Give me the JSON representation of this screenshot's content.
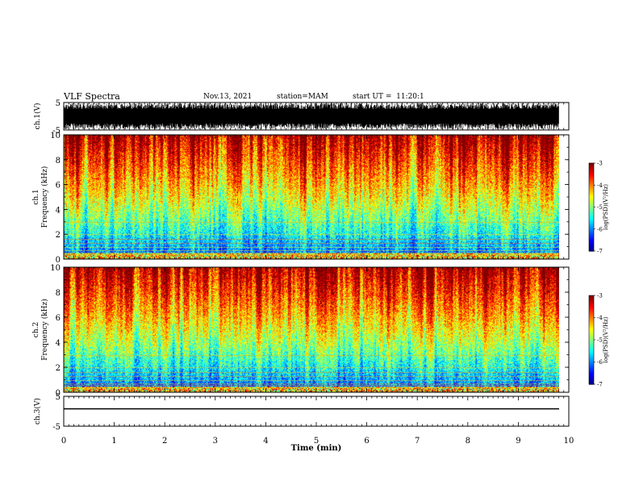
{
  "header": {
    "title": "VLF Spectra",
    "date": "Nov.13, 2021",
    "station": "station=MAM",
    "start": "start UT =  11:20:1"
  },
  "chart_data": [
    {
      "type": "line",
      "panel": "ch1-waveform",
      "ylabel": "ch.1(V)",
      "yticks": [
        "5",
        "-5"
      ],
      "ylim": [
        -5,
        5
      ],
      "note": "dense noisy waveform filling most of the range"
    },
    {
      "type": "heatmap",
      "panel": "ch1-spectrogram",
      "ylabel": "ch.1 Frequency (kHz)",
      "yticks": [
        "0",
        "2",
        "4",
        "6",
        "8",
        "10"
      ],
      "ylim": [
        0,
        10
      ],
      "colorbar": {
        "label": "log(PSD)(V²/Hz)",
        "ticks": [
          "-3",
          "-4",
          "-5",
          "-6",
          "-7"
        ],
        "range": [
          -7,
          -3
        ]
      }
    },
    {
      "type": "heatmap",
      "panel": "ch2-spectrogram",
      "ylabel": "ch.2 Frequency (kHz)",
      "yticks": [
        "0",
        "2",
        "4",
        "6",
        "8",
        "10"
      ],
      "ylim": [
        0,
        10
      ],
      "colorbar": {
        "label": "log(PSD)(V²/Hz)",
        "ticks": [
          "-3",
          "-4",
          "-5",
          "-6",
          "-7"
        ],
        "range": [
          -7,
          -3
        ]
      }
    },
    {
      "type": "line",
      "panel": "ch3-waveform",
      "ylabel": "ch.3(V)",
      "yticks": [
        "5",
        "-5"
      ],
      "ylim": [
        -5,
        5
      ],
      "note": "flat line near zero"
    }
  ],
  "xaxis": {
    "label": "Time (min)",
    "ticks": [
      "0",
      "1",
      "2",
      "3",
      "4",
      "5",
      "6",
      "7",
      "8",
      "9",
      "10"
    ],
    "xlim": [
      0,
      10
    ]
  }
}
